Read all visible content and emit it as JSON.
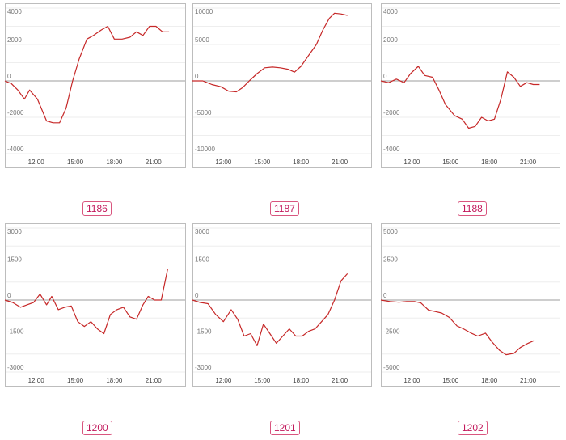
{
  "chart_data": [
    {
      "type": "line",
      "xlabel": "",
      "ylabel": "",
      "x_ticks": [
        "12:00",
        "15:00",
        "18:00",
        "21:00"
      ],
      "y_ticks": [
        "4000",
        "2000",
        "0",
        "-2000",
        "-4000"
      ],
      "ylim": [
        -4000,
        4000
      ],
      "xlim": [
        9.6,
        23.5
      ],
      "grid": true,
      "label": "1186",
      "series": [
        {
          "color": "#c62828",
          "x": [
            9.6,
            10.1,
            10.6,
            11.1,
            11.5,
            12.1,
            12.8,
            13.3,
            13.8,
            14.3,
            14.8,
            15.3,
            15.9,
            16.4,
            17.0,
            17.5,
            18.0,
            18.6,
            19.2,
            19.7,
            20.2,
            20.7,
            21.2,
            21.7,
            22.2
          ],
          "y": [
            0,
            -150,
            -500,
            -1000,
            -500,
            -1000,
            -2200,
            -2300,
            -2300,
            -1500,
            0,
            1200,
            2300,
            2500,
            2800,
            3000,
            2300,
            2300,
            2400,
            2700,
            2500,
            3000,
            3000,
            2700,
            2700
          ]
        }
      ]
    },
    {
      "type": "line",
      "xlabel": "",
      "ylabel": "",
      "x_ticks": [
        "12:00",
        "15:00",
        "18:00",
        "21:00"
      ],
      "y_ticks": [
        "10000",
        "5000",
        "0",
        "-5000",
        "-10000"
      ],
      "ylim": [
        -10000,
        10000
      ],
      "xlim": [
        9.6,
        23.5
      ],
      "grid": true,
      "label": "1187",
      "series": [
        {
          "color": "#c62828",
          "x": [
            9.6,
            10.4,
            11.1,
            11.8,
            12.4,
            13.0,
            13.5,
            14.0,
            14.6,
            15.2,
            15.8,
            16.4,
            17.0,
            17.5,
            18.0,
            18.6,
            19.2,
            19.7,
            20.2,
            20.6,
            21.1,
            21.6
          ],
          "y": [
            0,
            0,
            -500,
            -800,
            -1400,
            -1500,
            -900,
            0,
            1000,
            1800,
            1900,
            1800,
            1600,
            1200,
            2000,
            3500,
            5000,
            7000,
            8600,
            9300,
            9200,
            9000
          ]
        }
      ]
    },
    {
      "type": "line",
      "xlabel": "",
      "ylabel": "",
      "x_ticks": [
        "12:00",
        "15:00",
        "18:00",
        "21:00"
      ],
      "y_ticks": [
        "4000",
        "2000",
        "0",
        "-2000",
        "-4000"
      ],
      "ylim": [
        -4000,
        4000
      ],
      "xlim": [
        9.6,
        23.5
      ],
      "grid": true,
      "label": "1188",
      "series": [
        {
          "color": "#c62828",
          "x": [
            9.6,
            10.2,
            10.8,
            11.4,
            11.9,
            12.5,
            13.0,
            13.6,
            14.1,
            14.6,
            15.3,
            15.9,
            16.4,
            16.9,
            17.4,
            17.9,
            18.4,
            18.9,
            19.4,
            19.9,
            20.4,
            20.9,
            21.4,
            21.9
          ],
          "y": [
            0,
            -100,
            100,
            -100,
            400,
            800,
            300,
            200,
            -500,
            -1300,
            -1900,
            -2100,
            -2600,
            -2500,
            -2000,
            -2200,
            -2100,
            -1000,
            500,
            200,
            -300,
            -100,
            -200,
            -200
          ]
        }
      ]
    },
    {
      "type": "line",
      "xlabel": "",
      "ylabel": "",
      "x_ticks": [
        "12:00",
        "15:00",
        "18:00",
        "21:00"
      ],
      "y_ticks": [
        "3000",
        "1500",
        "0",
        "-1500",
        "-3000"
      ],
      "ylim": [
        -3000,
        3000
      ],
      "xlim": [
        9.6,
        23.5
      ],
      "grid": true,
      "label": "1200",
      "series": [
        {
          "color": "#c62828",
          "x": [
            9.6,
            10.2,
            10.8,
            11.3,
            11.8,
            12.3,
            12.8,
            13.2,
            13.7,
            14.2,
            14.7,
            15.2,
            15.7,
            16.2,
            16.7,
            17.2,
            17.7,
            18.2,
            18.7,
            19.2,
            19.7,
            20.2,
            20.6,
            21.1,
            21.6,
            22.1
          ],
          "y": [
            0,
            -100,
            -300,
            -200,
            -100,
            250,
            -200,
            150,
            -400,
            -300,
            -250,
            -900,
            -1100,
            -900,
            -1200,
            -1400,
            -600,
            -400,
            -300,
            -700,
            -800,
            -200,
            150,
            0,
            0,
            1300
          ]
        }
      ]
    },
    {
      "type": "line",
      "xlabel": "",
      "ylabel": "",
      "x_ticks": [
        "12:00",
        "15:00",
        "18:00",
        "21:00"
      ],
      "y_ticks": [
        "3000",
        "1500",
        "0",
        "-1500",
        "-3000"
      ],
      "ylim": [
        -3000,
        3000
      ],
      "xlim": [
        9.6,
        23.5
      ],
      "grid": true,
      "label": "1201",
      "series": [
        {
          "color": "#c62828",
          "x": [
            9.6,
            10.2,
            10.8,
            11.4,
            12.0,
            12.6,
            13.1,
            13.6,
            14.1,
            14.6,
            15.1,
            15.6,
            16.1,
            16.6,
            17.1,
            17.6,
            18.1,
            18.6,
            19.1,
            19.6,
            20.1,
            20.6,
            21.1,
            21.6
          ],
          "y": [
            0,
            -100,
            -150,
            -600,
            -900,
            -400,
            -800,
            -1500,
            -1400,
            -1900,
            -1000,
            -1400,
            -1800,
            -1500,
            -1200,
            -1500,
            -1500,
            -1300,
            -1200,
            -900,
            -600,
            0,
            800,
            1100
          ]
        }
      ]
    },
    {
      "type": "line",
      "xlabel": "",
      "ylabel": "",
      "x_ticks": [
        "12:00",
        "15:00",
        "18:00",
        "21:00"
      ],
      "y_ticks": [
        "5000",
        "2500",
        "0",
        "-2500",
        "-5000"
      ],
      "ylim": [
        -5000,
        5000
      ],
      "xlim": [
        9.6,
        23.5
      ],
      "grid": true,
      "label": "1202",
      "series": [
        {
          "color": "#c62828",
          "x": [
            9.6,
            10.3,
            11.0,
            11.6,
            12.2,
            12.7,
            13.3,
            13.8,
            14.3,
            14.9,
            15.5,
            16.0,
            16.6,
            17.1,
            17.7,
            18.2,
            18.8,
            19.3,
            19.9,
            20.4,
            21.0,
            21.5
          ],
          "y": [
            0,
            -100,
            -150,
            -100,
            -100,
            -200,
            -700,
            -800,
            -900,
            -1200,
            -1800,
            -2000,
            -2300,
            -2500,
            -2300,
            -2900,
            -3500,
            -3800,
            -3700,
            -3300,
            -3000,
            -2800
          ]
        }
      ]
    }
  ]
}
